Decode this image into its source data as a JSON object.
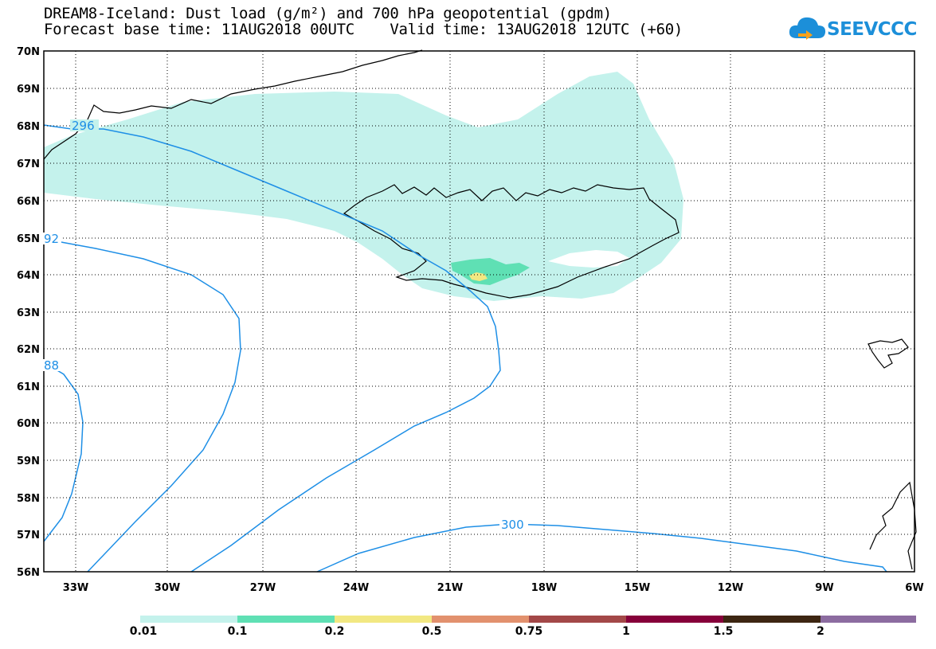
{
  "title_line1": "DREAM8-Iceland: Dust load (g/m²) and 700 hPa geopotential (gpdm)",
  "title_line2": "Forecast base time: 11AUG2018 00UTC    Valid time: 13AUG2018 12UTC (+60)",
  "logo_text": "SEEVCCC",
  "lat_labels": [
    "70N",
    "69N",
    "68N",
    "67N",
    "66N",
    "65N",
    "64N",
    "63N",
    "62N",
    "61N",
    "60N",
    "59N",
    "58N",
    "57N",
    "56N"
  ],
  "lon_labels": [
    "33W",
    "30W",
    "27W",
    "24W",
    "21W",
    "18W",
    "15W",
    "12W",
    "9W",
    "6W"
  ],
  "contour_labels": [
    "296",
    "92",
    "88",
    "300"
  ],
  "legend": {
    "labels": [
      "0.01",
      "0.1",
      "0.2",
      "0.5",
      "0.75",
      "1",
      "1.5",
      "2"
    ],
    "colors": [
      "#c4f2ec",
      "#5fe0b4",
      "#f2e882",
      "#e2916e",
      "#a34848",
      "#86003a",
      "#3d2612",
      "#8c6ca0"
    ]
  },
  "colors": {
    "dust_low": "#c4f2ec",
    "dust_mid": "#5fe0b4",
    "dust_high": "#f2e882",
    "contour": "#1e8fe6",
    "grid": "#000000"
  }
}
